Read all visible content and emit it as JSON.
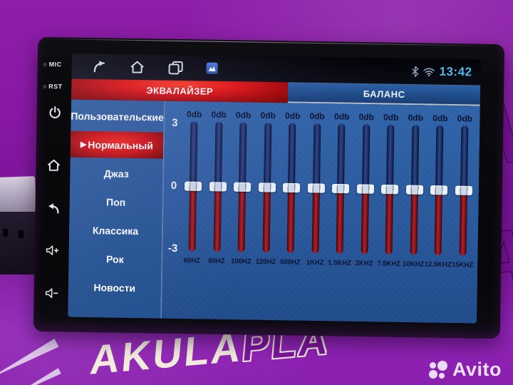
{
  "backdrop": {
    "watermark": {
      "solid": "AKULA",
      "outline": "PLA"
    },
    "bg_letters": [
      "A",
      "A"
    ],
    "brand": {
      "name": "Avito"
    }
  },
  "device": {
    "side_controls": {
      "mic_label": "MIC",
      "rst_label": "RST",
      "buttons": [
        "power",
        "home",
        "back",
        "volume-up",
        "volume-down"
      ]
    }
  },
  "screen": {
    "status_bar": {
      "time": "13:42"
    },
    "tabs": [
      {
        "id": "equalizer",
        "label": "ЭКВАЛАЙЗЕР",
        "active": true
      },
      {
        "id": "balance",
        "label": "БАЛАНС",
        "active": false
      }
    ],
    "presets": {
      "items": [
        {
          "label": "Пользовательские",
          "active": false,
          "prefix": ""
        },
        {
          "label": "Нормальный",
          "active": true,
          "prefix": "▶"
        },
        {
          "label": "Джаз",
          "active": false,
          "prefix": ""
        },
        {
          "label": "Поп",
          "active": false,
          "prefix": ""
        },
        {
          "label": "Классика",
          "active": false,
          "prefix": ""
        },
        {
          "label": "Рок",
          "active": false,
          "prefix": ""
        },
        {
          "label": "Новости",
          "active": false,
          "prefix": ""
        }
      ]
    },
    "equalizer": {
      "scale_labels": [
        "3",
        "0",
        "-3"
      ],
      "bands": [
        {
          "freq": "60HZ",
          "gain": "0db"
        },
        {
          "freq": "80HZ",
          "gain": "0db"
        },
        {
          "freq": "100HZ",
          "gain": "0db"
        },
        {
          "freq": "120HZ",
          "gain": "0db"
        },
        {
          "freq": "500HZ",
          "gain": "0db"
        },
        {
          "freq": "1KHZ",
          "gain": "0db"
        },
        {
          "freq": "1.5KHZ",
          "gain": "0db"
        },
        {
          "freq": "2KHZ",
          "gain": "0db"
        },
        {
          "freq": "7.5KHZ",
          "gain": "0db"
        },
        {
          "freq": "10KHZ",
          "gain": "0db"
        },
        {
          "freq": "12.5KHZ",
          "gain": "0db"
        },
        {
          "freq": "15KHZ",
          "gain": "0db"
        }
      ]
    }
  },
  "colors": {
    "accent_red": "#d00d0d",
    "panel_blue": "#29589b",
    "tab_inactive_blue": "#1d4782",
    "time_blue": "#52b7e6",
    "backdrop_purple": "#8a1fae",
    "slider_top_blue": "#2c4590",
    "slider_bottom_red": "#b32029"
  }
}
